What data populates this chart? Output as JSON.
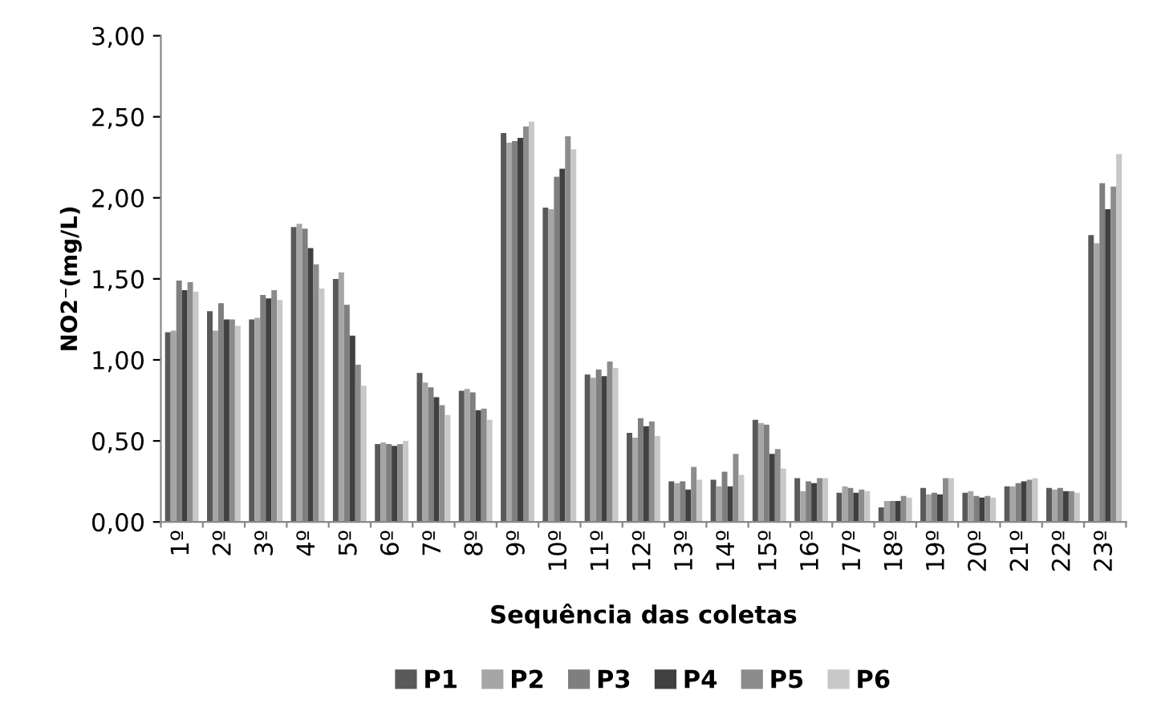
{
  "chart_data": {
    "type": "bar",
    "xlabel": "Sequência das coletas",
    "ylabel": "NO2⁻(mg/L)",
    "categories": [
      "1º",
      "2º",
      "3º",
      "4º",
      "5º",
      "6º",
      "7º",
      "8º",
      "9º",
      "10º",
      "11º",
      "12º",
      "13º",
      "14º",
      "15º",
      "16º",
      "17º",
      "18º",
      "19º",
      "20º",
      "21º",
      "22º",
      "23º"
    ],
    "series": [
      {
        "name": "P1",
        "color": "#595959",
        "values": [
          1.17,
          1.3,
          1.25,
          1.82,
          1.5,
          0.48,
          0.92,
          0.81,
          2.4,
          1.94,
          0.91,
          0.55,
          0.25,
          0.26,
          0.63,
          0.27,
          0.18,
          0.09,
          0.21,
          0.18,
          0.22,
          0.21,
          1.77
        ]
      },
      {
        "name": "P2",
        "color": "#a6a6a6",
        "values": [
          1.18,
          1.18,
          1.26,
          1.84,
          1.54,
          0.49,
          0.86,
          0.82,
          2.34,
          1.93,
          0.89,
          0.52,
          0.24,
          0.22,
          0.61,
          0.19,
          0.22,
          0.13,
          0.17,
          0.19,
          0.22,
          0.2,
          1.72
        ]
      },
      {
        "name": "P3",
        "color": "#7f7f7f",
        "values": [
          1.49,
          1.35,
          1.4,
          1.81,
          1.34,
          0.48,
          0.83,
          0.8,
          2.35,
          2.13,
          0.94,
          0.64,
          0.25,
          0.31,
          0.6,
          0.25,
          0.21,
          0.13,
          0.18,
          0.16,
          0.24,
          0.21,
          2.09
        ]
      },
      {
        "name": "P4",
        "color": "#404040",
        "values": [
          1.43,
          1.25,
          1.38,
          1.69,
          1.15,
          0.47,
          0.77,
          0.69,
          2.37,
          2.18,
          0.9,
          0.59,
          0.2,
          0.22,
          0.42,
          0.24,
          0.18,
          0.13,
          0.17,
          0.15,
          0.25,
          0.19,
          1.93
        ]
      },
      {
        "name": "P5",
        "color": "#8c8c8c",
        "values": [
          1.48,
          1.25,
          1.43,
          1.59,
          0.97,
          0.48,
          0.72,
          0.7,
          2.44,
          2.38,
          0.99,
          0.62,
          0.34,
          0.42,
          0.45,
          0.27,
          0.2,
          0.16,
          0.27,
          0.16,
          0.26,
          0.19,
          2.07
        ]
      },
      {
        "name": "P6",
        "color": "#c8c8c8",
        "values": [
          1.42,
          1.21,
          1.37,
          1.44,
          0.84,
          0.5,
          0.66,
          0.63,
          2.47,
          2.3,
          0.95,
          0.53,
          0.26,
          0.29,
          0.33,
          0.27,
          0.19,
          0.15,
          0.27,
          0.15,
          0.27,
          0.18,
          2.27
        ]
      }
    ],
    "ylim": [
      0,
      3
    ],
    "yticks": [
      {
        "value": 0,
        "label": "0,00"
      },
      {
        "value": 0.5,
        "label": "0,50"
      },
      {
        "value": 1,
        "label": "1,00"
      },
      {
        "value": 1.5,
        "label": "1,50"
      },
      {
        "value": 2,
        "label": "2,00"
      },
      {
        "value": 2.5,
        "label": "2,50"
      },
      {
        "value": 3,
        "label": "3,00"
      }
    ],
    "grid": false,
    "legend": "bottom"
  }
}
